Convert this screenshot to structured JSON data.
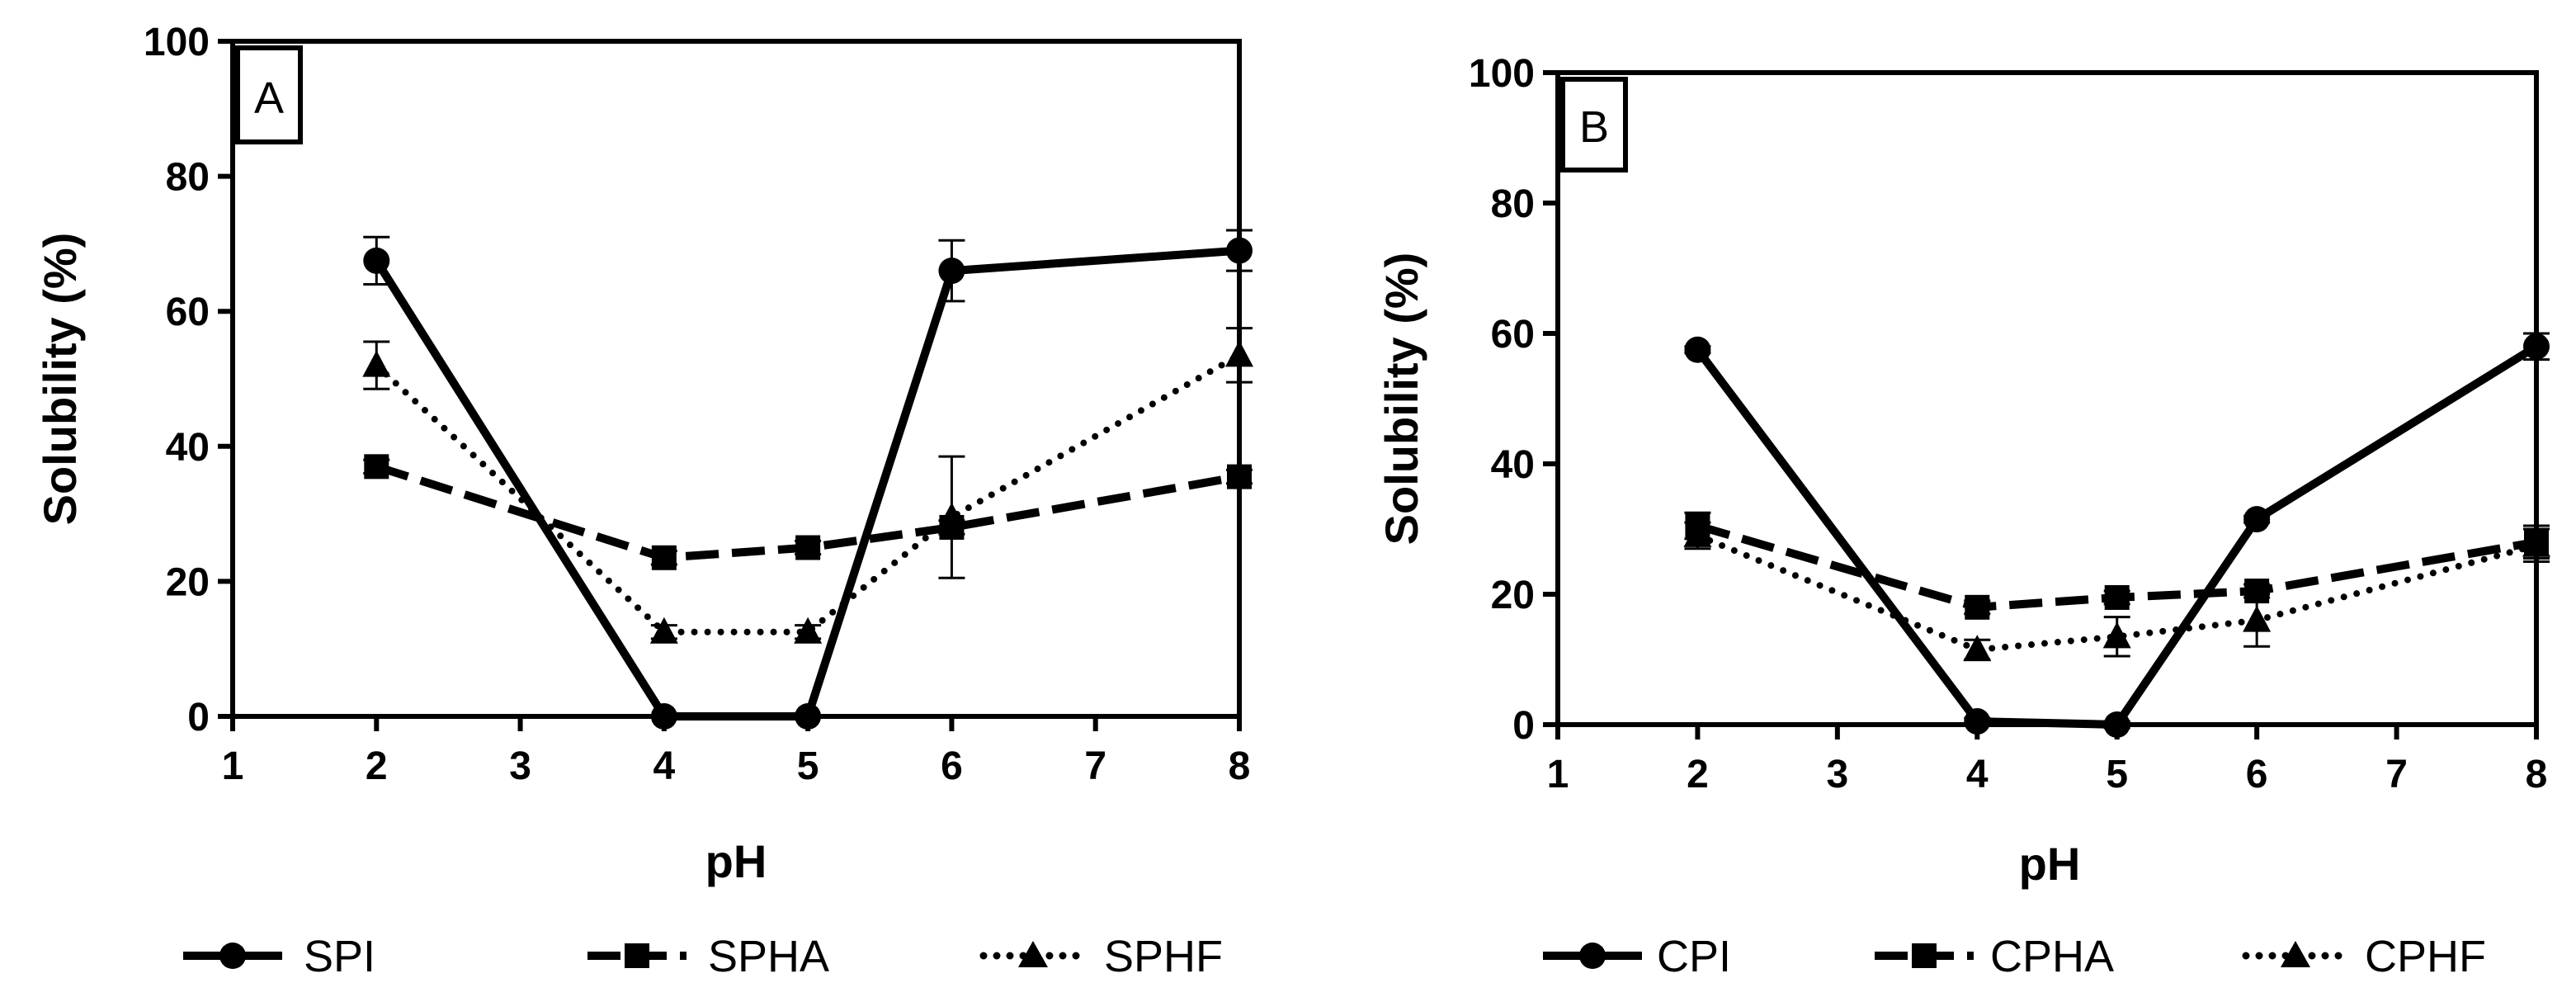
{
  "chart_data": [
    {
      "type": "line",
      "panel_label": "A",
      "xlabel": "pH",
      "ylabel": "Solubility (%)",
      "xlim": [
        1,
        8
      ],
      "ylim": [
        0,
        100
      ],
      "x_ticks": [
        "1",
        "2",
        "3",
        "4",
        "5",
        "6",
        "7",
        "8"
      ],
      "y_ticks": [
        "0",
        "20",
        "40",
        "60",
        "80",
        "100"
      ],
      "grid": false,
      "legend_position": "bottom",
      "x": [
        2,
        4,
        5,
        6,
        8
      ],
      "series": [
        {
          "name": "SPI",
          "values": [
            67.5,
            0,
            0,
            66,
            69
          ],
          "errors": [
            3.5,
            0,
            0,
            4.5,
            3
          ],
          "marker": "circle",
          "line_style": "solid"
        },
        {
          "name": "SPHA",
          "values": [
            37,
            23.5,
            25,
            28,
            35.5
          ],
          "errors": [
            1,
            1,
            1,
            1,
            1
          ],
          "marker": "square",
          "line_style": "dashed"
        },
        {
          "name": "SPHF",
          "values": [
            52,
            12.5,
            12.5,
            29.5,
            53.5
          ],
          "errors": [
            3.5,
            1,
            1,
            9,
            4
          ],
          "marker": "triangle",
          "line_style": "dotted"
        }
      ]
    },
    {
      "type": "line",
      "panel_label": "B",
      "xlabel": "pH",
      "ylabel": "Solubility (%)",
      "xlim": [
        1,
        8
      ],
      "ylim": [
        0,
        100
      ],
      "x_ticks": [
        "1",
        "2",
        "3",
        "4",
        "5",
        "6",
        "7",
        "8"
      ],
      "y_ticks": [
        "0",
        "20",
        "40",
        "60",
        "80",
        "100"
      ],
      "grid": false,
      "legend_position": "bottom",
      "x": [
        2,
        4,
        5,
        6,
        8
      ],
      "series": [
        {
          "name": "CPI",
          "values": [
            57.5,
            0.5,
            0,
            31.5,
            58
          ],
          "errors": [
            0.5,
            0.5,
            0.5,
            0.5,
            2
          ],
          "marker": "circle",
          "line_style": "solid"
        },
        {
          "name": "CPHA",
          "values": [
            30.5,
            18,
            19.5,
            20.5,
            28
          ],
          "errors": [
            2,
            1,
            1,
            1,
            2.5
          ],
          "marker": "square",
          "line_style": "dashed"
        },
        {
          "name": "CPHF",
          "values": [
            29,
            11.5,
            13.5,
            16,
            27.5
          ],
          "errors": [
            2,
            1.5,
            3,
            4,
            2.5
          ],
          "marker": "triangle",
          "line_style": "dotted"
        }
      ]
    }
  ]
}
